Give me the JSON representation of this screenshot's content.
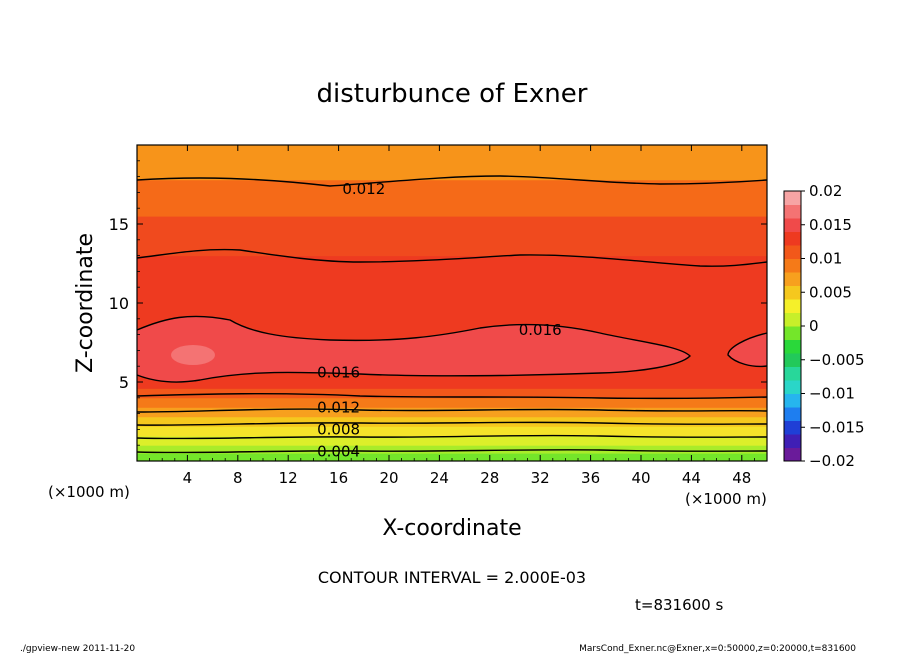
{
  "chart_data": {
    "type": "heatmap",
    "title": "disturbunce of Exner",
    "xlabel": "X-coordinate",
    "ylabel": "Z-coordinate",
    "x_unit": "(×1000 m)",
    "y_unit": "(×1000 m)",
    "x_ticks": [
      4,
      8,
      12,
      16,
      20,
      24,
      28,
      32,
      36,
      40,
      44,
      48
    ],
    "y_ticks": [
      5,
      10,
      15
    ],
    "xlim": [
      0,
      50
    ],
    "ylim": [
      0,
      20
    ],
    "contour_interval_text": "CONTOUR INTERVAL = 2.000E-03",
    "time_text": "t=831600 s",
    "contour_labels": [
      {
        "text": "0.012",
        "x": 18,
        "z": 17.2
      },
      {
        "text": "0.016",
        "x": 32,
        "z": 8.3
      },
      {
        "text": "0.016",
        "x": 16,
        "z": 5.6
      },
      {
        "text": "0.012",
        "x": 16,
        "z": 3.4
      },
      {
        "text": "0.008",
        "x": 16,
        "z": 2.0
      },
      {
        "text": "0.004",
        "x": 16,
        "z": 0.6
      }
    ],
    "colorbar": {
      "ticks": [
        "0.02",
        "0.015",
        "0.01",
        "0.005",
        "0",
        "−0.005",
        "−0.01",
        "−0.015",
        "−0.02"
      ],
      "range": [
        -0.02,
        0.02
      ],
      "colors": [
        "#6a1b9a",
        "#3f1fb5",
        "#1f3fd6",
        "#1e7ef0",
        "#26b5ee",
        "#2ad6c8",
        "#28d79a",
        "#22c95a",
        "#2ad83a",
        "#74e62a",
        "#c7ef2a",
        "#f5f02a",
        "#f5c81e",
        "#f7a01e",
        "#f57a18",
        "#f2581a",
        "#ee3a20",
        "#f04a4a",
        "#f47373",
        "#f7a4a4"
      ]
    },
    "field_levels": [
      {
        "z0": 0.0,
        "z1": 0.5,
        "color": "#74e62a"
      },
      {
        "z0": 0.5,
        "z1": 1.0,
        "color": "#a9ec2a"
      },
      {
        "z0": 1.0,
        "z1": 1.6,
        "color": "#dcef2a"
      },
      {
        "z0": 1.6,
        "z1": 2.2,
        "color": "#f5e32a"
      },
      {
        "z0": 2.2,
        "z1": 2.8,
        "color": "#f5c81e"
      },
      {
        "z0": 2.8,
        "z1": 3.4,
        "color": "#f7a01e"
      },
      {
        "z0": 3.4,
        "z1": 4.0,
        "color": "#f57a18"
      },
      {
        "z0": 4.0,
        "z1": 4.6,
        "color": "#f2581a"
      },
      {
        "z0": 4.6,
        "z1": 13.0,
        "color": "#ee3a20"
      },
      {
        "z0": 13.0,
        "z1": 15.5,
        "color": "#f04a1e"
      },
      {
        "z0": 15.5,
        "z1": 17.8,
        "color": "#f56a18"
      },
      {
        "z0": 17.8,
        "z1": 20.0,
        "color": "#f7941a"
      }
    ]
  },
  "footer": {
    "left": "./gpview-new   2011-11-20",
    "right": "MarsCond_Exner.nc@Exner,x=0:50000,z=0:20000,t=831600"
  }
}
